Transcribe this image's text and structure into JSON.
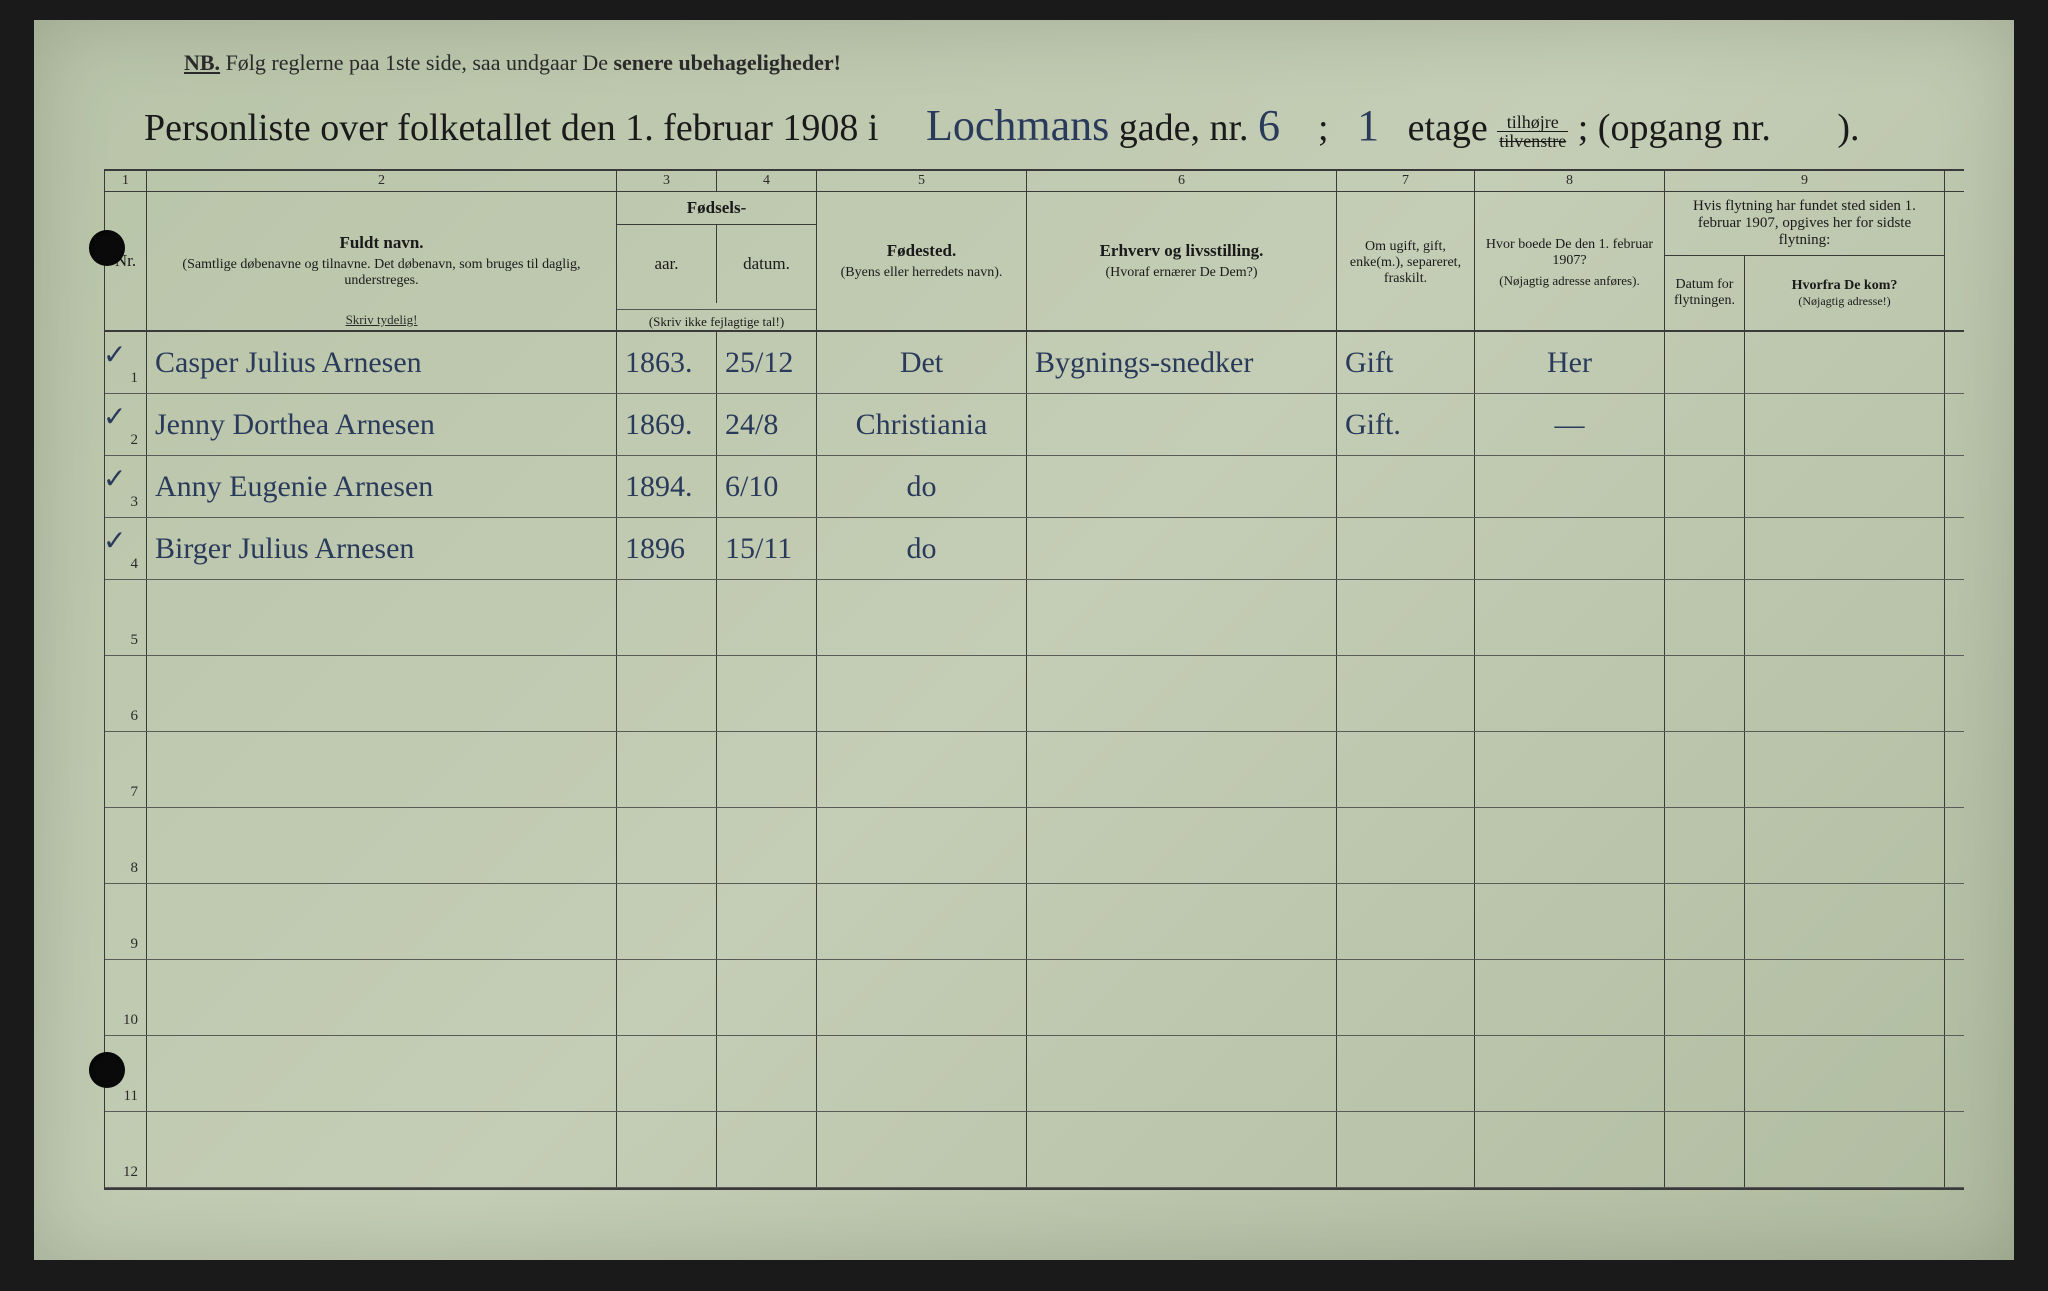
{
  "notice": {
    "nb": "NB.",
    "text1": "Følg reglerne paa 1ste side, saa undgaar De ",
    "bold": "senere ubehageligheder!"
  },
  "title": {
    "prefix": "Personliste over folketallet den 1. februar 1908 i",
    "street": "Lochmans",
    "gade": "gade, nr.",
    "house_nr": "6",
    "semi": ";",
    "floor": "1",
    "etage": "etage",
    "side_top": "tilhøjre",
    "side_bot": "tilvenstre",
    "opgang": "; (opgang nr.",
    "end": ")."
  },
  "col_nums": [
    "1",
    "2",
    "3",
    "4",
    "5",
    "6",
    "7",
    "8",
    "9"
  ],
  "headers": {
    "nr": "Nr.",
    "name_title": "Fuldt navn.",
    "name_sub": "(Samtlige døbenavne og tilnavne. Det døbenavn, som bruges til daglig, understreges.",
    "name_skriv": "Skriv tydelig!",
    "fods": "Fødsels-",
    "aar": "aar.",
    "datum": "datum.",
    "fods_note": "(Skriv ikke fejlagtige tal!)",
    "fodested": "Fødested.",
    "fodested_sub": "(Byens eller herredets navn).",
    "erhverv": "Erhverv og livsstilling.",
    "erhverv_sub": "(Hvoraf ernærer De Dem?)",
    "ugift": "Om ugift, gift, enke(m.), separeret, fraskilt.",
    "boede": "Hvor boede De den 1. februar 1907?",
    "boede_sub": "(Nøjagtig adresse anføres).",
    "flyt_title": "Hvis flytning har fundet sted siden 1. februar 1907, opgives her for sidste flytning:",
    "flyt_datum": "Datum for flytningen.",
    "flyt_hvor": "Hvorfra De kom?",
    "flyt_hvor_sub": "(Nøjagtig adresse!)"
  },
  "rows": [
    {
      "nr": "1",
      "mark": "✓",
      "name": "Casper Julius Arnesen",
      "aar": "1863.",
      "datum": "25/12",
      "sted": "Det",
      "erhverv": "Bygnings-snedker",
      "status": "Gift",
      "boede": "Her",
      "fd": "",
      "fh": ""
    },
    {
      "nr": "2",
      "mark": "✓",
      "name": "Jenny Dorthea Arnesen",
      "aar": "1869.",
      "datum": "24/8",
      "sted": "Christiania",
      "erhverv": "",
      "status": "Gift.",
      "boede": "—",
      "fd": "",
      "fh": ""
    },
    {
      "nr": "3",
      "mark": "✓",
      "name": "Anny Eugenie Arnesen",
      "aar": "1894.",
      "datum": "6/10",
      "sted": "do",
      "erhverv": "",
      "status": "",
      "boede": "",
      "fd": "",
      "fh": ""
    },
    {
      "nr": "4",
      "mark": "✓",
      "name": "Birger Julius Arnesen",
      "aar": "1896",
      "datum": "15/11",
      "sted": "do",
      "erhverv": "",
      "status": "",
      "boede": "",
      "fd": "",
      "fh": ""
    },
    {
      "nr": "5",
      "mark": "",
      "name": "",
      "aar": "",
      "datum": "",
      "sted": "",
      "erhverv": "",
      "status": "",
      "boede": "",
      "fd": "",
      "fh": ""
    },
    {
      "nr": "6",
      "mark": "",
      "name": "",
      "aar": "",
      "datum": "",
      "sted": "",
      "erhverv": "",
      "status": "",
      "boede": "",
      "fd": "",
      "fh": ""
    },
    {
      "nr": "7",
      "mark": "",
      "name": "",
      "aar": "",
      "datum": "",
      "sted": "",
      "erhverv": "",
      "status": "",
      "boede": "",
      "fd": "",
      "fh": ""
    },
    {
      "nr": "8",
      "mark": "",
      "name": "",
      "aar": "",
      "datum": "",
      "sted": "",
      "erhverv": "",
      "status": "",
      "boede": "",
      "fd": "",
      "fh": ""
    },
    {
      "nr": "9",
      "mark": "",
      "name": "",
      "aar": "",
      "datum": "",
      "sted": "",
      "erhverv": "",
      "status": "",
      "boede": "",
      "fd": "",
      "fh": ""
    },
    {
      "nr": "10",
      "mark": "",
      "name": "",
      "aar": "",
      "datum": "",
      "sted": "",
      "erhverv": "",
      "status": "",
      "boede": "",
      "fd": "",
      "fh": ""
    },
    {
      "nr": "11",
      "mark": "",
      "name": "",
      "aar": "",
      "datum": "",
      "sted": "",
      "erhverv": "",
      "status": "",
      "boede": "",
      "fd": "",
      "fh": ""
    },
    {
      "nr": "12",
      "mark": "",
      "name": "",
      "aar": "",
      "datum": "",
      "sted": "",
      "erhverv": "",
      "status": "",
      "boede": "",
      "fd": "",
      "fh": ""
    }
  ],
  "colors": {
    "paper": "#b8c4a8",
    "ink_print": "#1a1a1a",
    "ink_hand": "#2a3a5a",
    "rule": "#3a3a3a"
  }
}
